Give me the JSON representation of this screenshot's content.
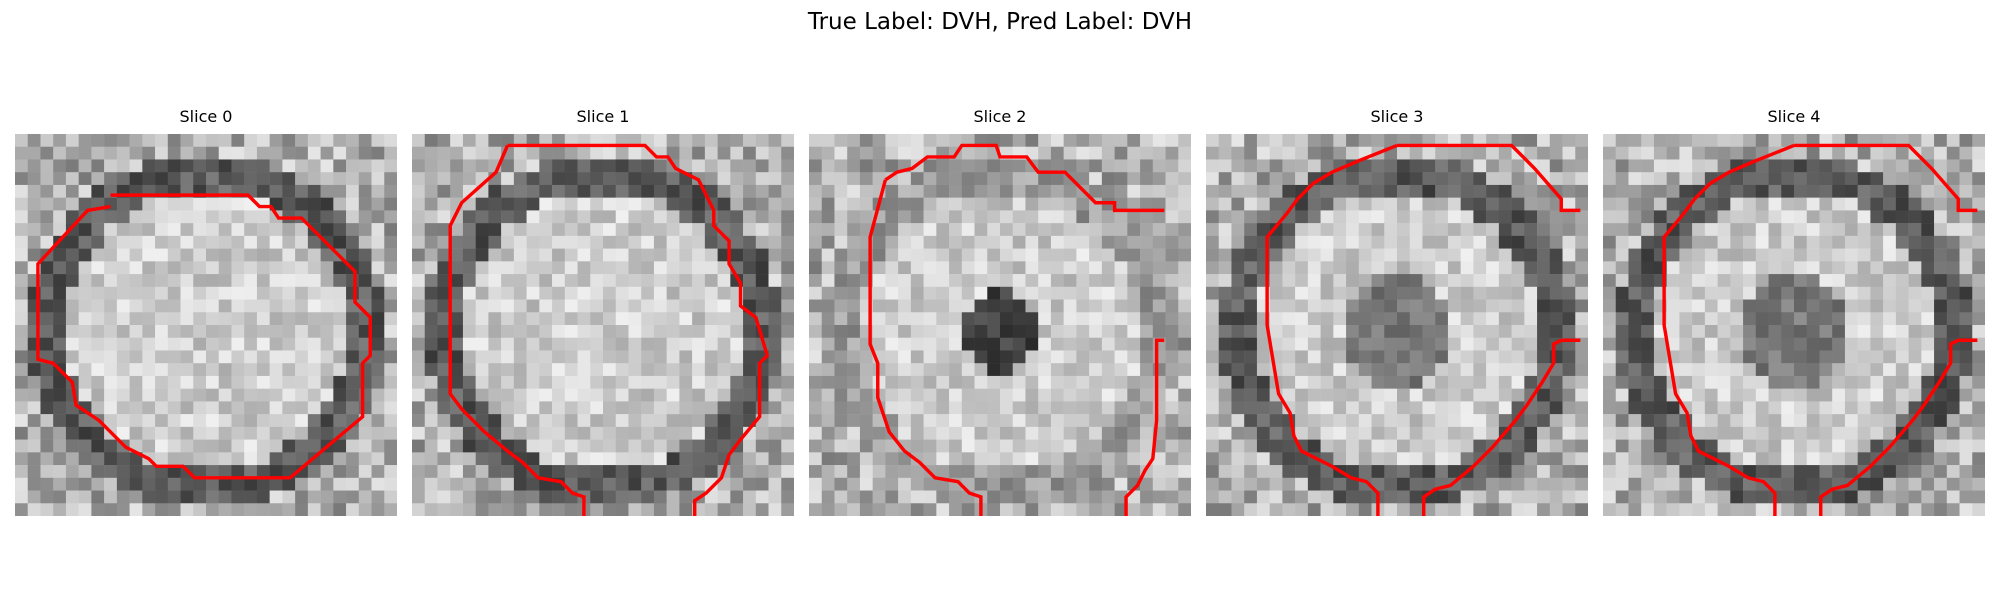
{
  "figure": {
    "title": "True Label: DVH, Pred Label: DVH",
    "panels": [
      {
        "title": "Slice 0",
        "center": "bright",
        "ring": "dark",
        "shift": 0,
        "contour": [
          [
            0.25,
            0.16
          ],
          [
            0.61,
            0.16
          ],
          [
            0.64,
            0.19
          ],
          [
            0.67,
            0.19
          ],
          [
            0.69,
            0.22
          ],
          [
            0.75,
            0.22
          ],
          [
            0.89,
            0.36
          ],
          [
            0.89,
            0.44
          ],
          [
            0.93,
            0.48
          ],
          [
            0.93,
            0.58
          ],
          [
            0.91,
            0.6
          ],
          [
            0.91,
            0.74
          ],
          [
            0.72,
            0.9
          ],
          [
            0.47,
            0.9
          ],
          [
            0.44,
            0.87
          ],
          [
            0.37,
            0.87
          ],
          [
            0.35,
            0.85
          ],
          [
            0.29,
            0.82
          ],
          [
            0.25,
            0.78
          ],
          [
            0.22,
            0.75
          ],
          [
            0.16,
            0.71
          ],
          [
            0.15,
            0.65
          ],
          [
            0.1,
            0.6
          ],
          [
            0.06,
            0.59
          ],
          [
            0.06,
            0.34
          ],
          [
            0.19,
            0.2
          ],
          [
            0.25,
            0.19
          ]
        ]
      },
      {
        "title": "Slice 1",
        "center": "bright",
        "ring": "dark",
        "shift": 1,
        "contour": [
          [
            0.25,
            0.03
          ],
          [
            0.61,
            0.03
          ],
          [
            0.64,
            0.06
          ],
          [
            0.67,
            0.06
          ],
          [
            0.69,
            0.09
          ],
          [
            0.75,
            0.12
          ],
          [
            0.79,
            0.2
          ],
          [
            0.79,
            0.24
          ],
          [
            0.83,
            0.28
          ],
          [
            0.83,
            0.34
          ],
          [
            0.86,
            0.39
          ],
          [
            0.86,
            0.45
          ],
          [
            0.9,
            0.48
          ],
          [
            0.93,
            0.58
          ],
          [
            0.91,
            0.6
          ],
          [
            0.91,
            0.74
          ],
          [
            0.86,
            0.8
          ],
          [
            0.83,
            0.84
          ],
          [
            0.81,
            0.9
          ],
          [
            0.77,
            0.94
          ],
          [
            0.74,
            0.96
          ],
          [
            0.74,
            1.0
          ]
        ],
        "contour2": [
          [
            0.45,
            1.0
          ],
          [
            0.45,
            0.95
          ],
          [
            0.42,
            0.94
          ],
          [
            0.39,
            0.91
          ],
          [
            0.33,
            0.9
          ],
          [
            0.29,
            0.86
          ],
          [
            0.25,
            0.83
          ],
          [
            0.19,
            0.78
          ],
          [
            0.13,
            0.72
          ],
          [
            0.1,
            0.68
          ],
          [
            0.1,
            0.24
          ],
          [
            0.13,
            0.18
          ],
          [
            0.22,
            0.1
          ],
          [
            0.25,
            0.03
          ]
        ]
      },
      {
        "title": "Slice 2",
        "center": "dark",
        "ring": "bright",
        "shift": 2,
        "contour": [
          [
            0.2,
            0.12
          ],
          [
            0.23,
            0.1
          ],
          [
            0.27,
            0.09
          ],
          [
            0.31,
            0.06
          ],
          [
            0.38,
            0.06
          ],
          [
            0.4,
            0.03
          ],
          [
            0.49,
            0.03
          ],
          [
            0.5,
            0.06
          ],
          [
            0.57,
            0.06
          ],
          [
            0.6,
            0.1
          ],
          [
            0.67,
            0.1
          ],
          [
            0.75,
            0.18
          ],
          [
            0.8,
            0.18
          ],
          [
            0.8,
            0.2
          ],
          [
            0.93,
            0.2
          ]
        ],
        "contour2": [
          [
            0.45,
            1.0
          ],
          [
            0.45,
            0.95
          ],
          [
            0.42,
            0.94
          ],
          [
            0.39,
            0.91
          ],
          [
            0.33,
            0.9
          ],
          [
            0.29,
            0.86
          ],
          [
            0.25,
            0.83
          ],
          [
            0.21,
            0.78
          ],
          [
            0.18,
            0.69
          ],
          [
            0.18,
            0.6
          ],
          [
            0.16,
            0.55
          ],
          [
            0.16,
            0.27
          ],
          [
            0.2,
            0.12
          ]
        ],
        "contour3": [
          [
            0.83,
            1.0
          ],
          [
            0.83,
            0.95
          ],
          [
            0.86,
            0.92
          ],
          [
            0.88,
            0.88
          ],
          [
            0.9,
            0.85
          ],
          [
            0.91,
            0.75
          ],
          [
            0.91,
            0.54
          ],
          [
            0.93,
            0.54
          ]
        ]
      },
      {
        "title": "Slice 3",
        "center": "mid",
        "ring": "dark",
        "shift": 3,
        "contour": [
          [
            0.5,
            0.03
          ],
          [
            0.8,
            0.03
          ],
          [
            0.86,
            0.09
          ],
          [
            0.93,
            0.17
          ],
          [
            0.93,
            0.2
          ],
          [
            0.98,
            0.2
          ]
        ],
        "contour2": [
          [
            0.45,
            1.0
          ],
          [
            0.45,
            0.94
          ],
          [
            0.42,
            0.91
          ],
          [
            0.38,
            0.9
          ],
          [
            0.33,
            0.87
          ],
          [
            0.25,
            0.83
          ],
          [
            0.23,
            0.79
          ],
          [
            0.22,
            0.73
          ],
          [
            0.19,
            0.68
          ],
          [
            0.16,
            0.5
          ],
          [
            0.16,
            0.27
          ],
          [
            0.21,
            0.21
          ],
          [
            0.24,
            0.17
          ],
          [
            0.28,
            0.13
          ],
          [
            0.33,
            0.1
          ],
          [
            0.4,
            0.07
          ],
          [
            0.5,
            0.03
          ]
        ],
        "contour3": [
          [
            0.57,
            1.0
          ],
          [
            0.57,
            0.95
          ],
          [
            0.6,
            0.93
          ],
          [
            0.64,
            0.92
          ],
          [
            0.7,
            0.87
          ],
          [
            0.75,
            0.82
          ],
          [
            0.81,
            0.75
          ],
          [
            0.84,
            0.71
          ],
          [
            0.88,
            0.65
          ],
          [
            0.91,
            0.6
          ],
          [
            0.91,
            0.55
          ],
          [
            0.93,
            0.54
          ],
          [
            0.98,
            0.54
          ]
        ]
      },
      {
        "title": "Slice 4",
        "center": "mid",
        "ring": "dark",
        "shift": 4,
        "contour": [
          [
            0.5,
            0.03
          ],
          [
            0.8,
            0.03
          ],
          [
            0.86,
            0.09
          ],
          [
            0.93,
            0.17
          ],
          [
            0.93,
            0.2
          ],
          [
            0.98,
            0.2
          ]
        ],
        "contour2": [
          [
            0.45,
            1.0
          ],
          [
            0.45,
            0.94
          ],
          [
            0.42,
            0.91
          ],
          [
            0.38,
            0.9
          ],
          [
            0.33,
            0.87
          ],
          [
            0.25,
            0.83
          ],
          [
            0.23,
            0.79
          ],
          [
            0.22,
            0.73
          ],
          [
            0.19,
            0.68
          ],
          [
            0.16,
            0.5
          ],
          [
            0.16,
            0.27
          ],
          [
            0.21,
            0.21
          ],
          [
            0.24,
            0.17
          ],
          [
            0.28,
            0.13
          ],
          [
            0.33,
            0.1
          ],
          [
            0.4,
            0.07
          ],
          [
            0.5,
            0.03
          ]
        ],
        "contour3": [
          [
            0.57,
            1.0
          ],
          [
            0.57,
            0.95
          ],
          [
            0.6,
            0.93
          ],
          [
            0.64,
            0.92
          ],
          [
            0.7,
            0.87
          ],
          [
            0.75,
            0.82
          ],
          [
            0.81,
            0.75
          ],
          [
            0.84,
            0.71
          ],
          [
            0.88,
            0.65
          ],
          [
            0.91,
            0.6
          ],
          [
            0.91,
            0.55
          ],
          [
            0.93,
            0.54
          ],
          [
            0.98,
            0.54
          ]
        ]
      }
    ],
    "contour_color": "#ff0000"
  }
}
